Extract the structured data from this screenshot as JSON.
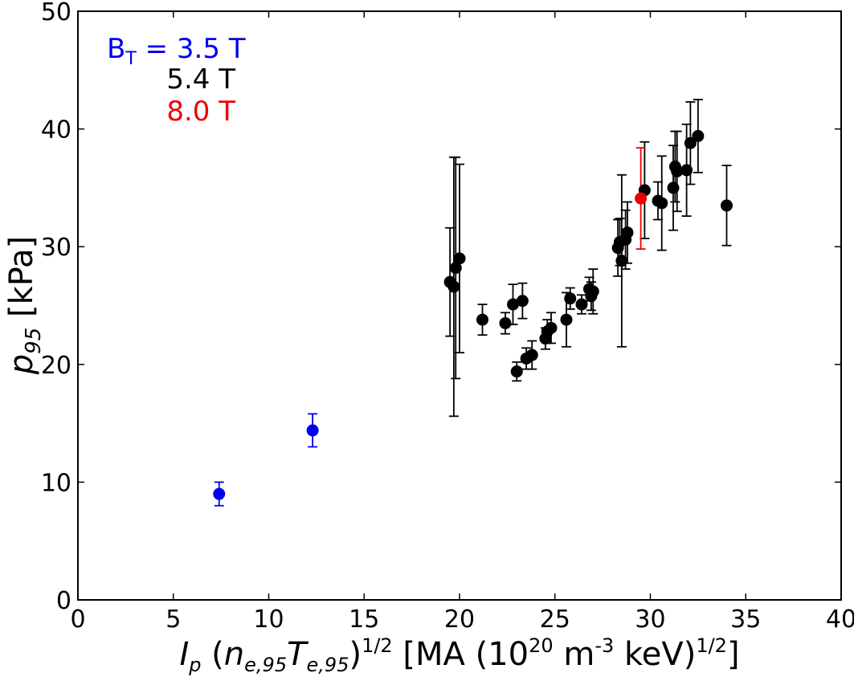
{
  "chart_data": {
    "type": "scatter",
    "xlabel": {
      "main": "I",
      "main_sub": "p",
      "paren_open": " (",
      "n": "n",
      "n_sub": "e,95",
      "T": "T",
      "T_sub": "e,95",
      "paren_close": ")",
      "exp": "1/2",
      "units_a": " [MA  (10",
      "units_exp20": "20",
      "units_b": " m",
      "units_expm3": "-3",
      "units_c": " keV)",
      "units_exp": "1/2",
      "units_d": "]"
    },
    "ylabel": {
      "main": "p",
      "sub": "95",
      "units": " [kPa]"
    },
    "xlim": [
      0,
      40
    ],
    "ylim": [
      0,
      50
    ],
    "xticks": [
      0,
      5,
      10,
      15,
      20,
      25,
      30,
      35,
      40
    ],
    "yticks": [
      0,
      10,
      20,
      30,
      40,
      50
    ],
    "xtick_labels": [
      "0",
      "5",
      "10",
      "15",
      "20",
      "25",
      "30",
      "35",
      "40"
    ],
    "ytick_labels": [
      "0",
      "10",
      "20",
      "30",
      "40",
      "50"
    ],
    "grid": false,
    "legend": {
      "placement": "top-left",
      "entries": [
        {
          "prefix": "B",
          "prefix_sub": "T",
          "eq": " = ",
          "label": "3.5 T",
          "color": "#0000ee"
        },
        {
          "prefix": "",
          "prefix_sub": "",
          "eq": "",
          "label": "5.4 T",
          "color": "#000000"
        },
        {
          "prefix": "",
          "prefix_sub": "",
          "eq": "",
          "label": "8.0 T",
          "color": "#ee0000"
        }
      ]
    },
    "series": [
      {
        "color": "#0000ee",
        "points": [
          {
            "x": 7.4,
            "y": 9.0,
            "err": 1.0
          },
          {
            "x": 12.3,
            "y": 14.4,
            "err": 1.4
          }
        ]
      },
      {
        "color": "#000000",
        "points": [
          {
            "x": 19.5,
            "y": 27.0,
            "err": 4.6
          },
          {
            "x": 19.7,
            "y": 26.6,
            "err": 11.0
          },
          {
            "x": 19.8,
            "y": 28.2,
            "err": 9.4
          },
          {
            "x": 20.0,
            "y": 29.0,
            "err": 8.0
          },
          {
            "x": 21.2,
            "y": 23.8,
            "err": 1.3
          },
          {
            "x": 22.4,
            "y": 23.5,
            "err": 0.9
          },
          {
            "x": 22.8,
            "y": 25.1,
            "err": 1.7
          },
          {
            "x": 23.0,
            "y": 19.4,
            "err": 0.8
          },
          {
            "x": 23.3,
            "y": 25.4,
            "err": 1.5
          },
          {
            "x": 23.5,
            "y": 20.5,
            "err": 0.9
          },
          {
            "x": 23.8,
            "y": 20.8,
            "err": 1.2
          },
          {
            "x": 24.5,
            "y": 22.2,
            "err": 0.9
          },
          {
            "x": 24.6,
            "y": 22.8,
            "err": 1.0
          },
          {
            "x": 24.8,
            "y": 23.1,
            "err": 1.3
          },
          {
            "x": 25.6,
            "y": 23.8,
            "err": 2.3
          },
          {
            "x": 25.8,
            "y": 25.6,
            "err": 0.9
          },
          {
            "x": 26.4,
            "y": 25.1,
            "err": 0.8
          },
          {
            "x": 26.8,
            "y": 26.4,
            "err": 1.0
          },
          {
            "x": 26.9,
            "y": 25.8,
            "err": 1.2
          },
          {
            "x": 27.0,
            "y": 26.2,
            "err": 1.9
          },
          {
            "x": 28.3,
            "y": 29.9,
            "err": 2.4
          },
          {
            "x": 28.4,
            "y": 30.4,
            "err": 2.0
          },
          {
            "x": 28.5,
            "y": 28.8,
            "err": 7.3
          },
          {
            "x": 28.7,
            "y": 30.6,
            "err": 2.5
          },
          {
            "x": 28.8,
            "y": 31.2,
            "err": 2.6
          },
          {
            "x": 29.7,
            "y": 34.8,
            "err": 4.1
          },
          {
            "x": 30.4,
            "y": 33.9,
            "err": 1.6
          },
          {
            "x": 30.6,
            "y": 33.7,
            "err": 4.0
          },
          {
            "x": 31.2,
            "y": 35.0,
            "err": 3.6
          },
          {
            "x": 31.3,
            "y": 36.8,
            "err": 3.0
          },
          {
            "x": 31.4,
            "y": 36.4,
            "err": 3.4
          },
          {
            "x": 31.9,
            "y": 36.5,
            "err": 3.9
          },
          {
            "x": 32.1,
            "y": 38.8,
            "err": 3.5
          },
          {
            "x": 32.5,
            "y": 39.4,
            "err": 3.1
          },
          {
            "x": 34.0,
            "y": 33.5,
            "err": 3.4
          }
        ]
      },
      {
        "color": "#ee0000",
        "points": [
          {
            "x": 29.5,
            "y": 34.1,
            "err": 4.3
          }
        ]
      }
    ]
  }
}
